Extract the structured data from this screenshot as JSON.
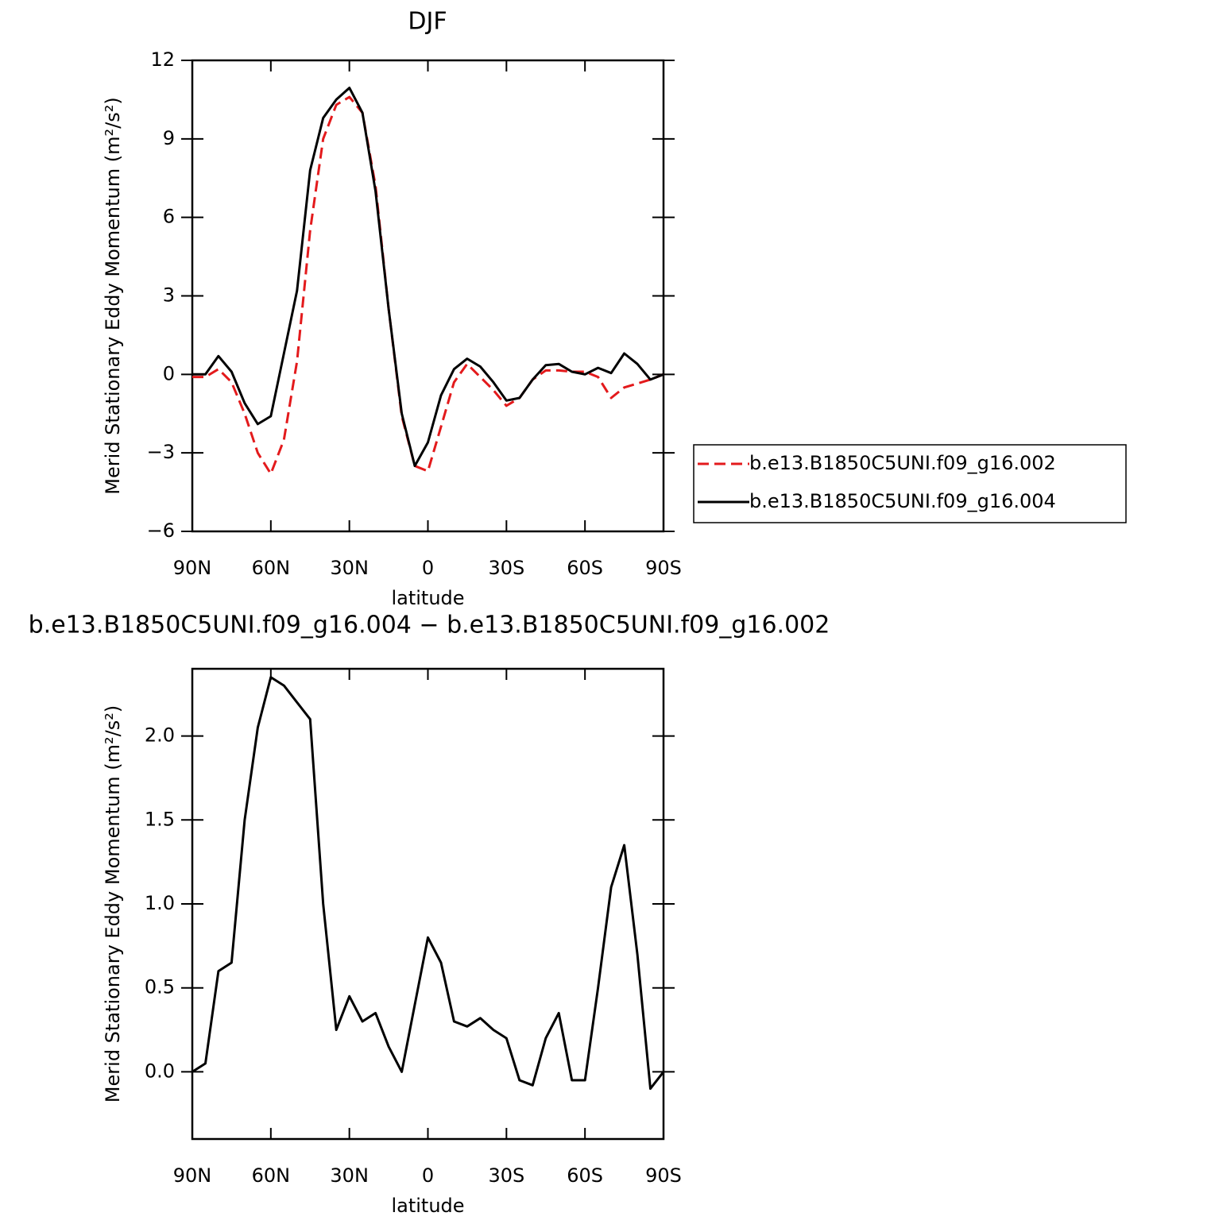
{
  "chart_data": [
    {
      "type": "line",
      "title": "DJF",
      "xlabel": "latitude",
      "ylabel": "Merid Stationary Eddy Momentum (m²/s²)",
      "x": [
        90,
        85,
        80,
        75,
        70,
        65,
        60,
        55,
        50,
        45,
        40,
        35,
        30,
        25,
        20,
        15,
        10,
        5,
        0,
        -5,
        -10,
        -15,
        -20,
        -25,
        -30,
        -35,
        -40,
        -45,
        -50,
        -55,
        -60,
        -65,
        -70,
        -75,
        -80,
        -85,
        -90
      ],
      "xlim": [
        90,
        -90
      ],
      "xticks": [
        {
          "value": 90,
          "label": "90N"
        },
        {
          "value": 60,
          "label": "60N"
        },
        {
          "value": 30,
          "label": "30N"
        },
        0,
        {
          "value": -30,
          "label": "30S"
        },
        {
          "value": -60,
          "label": "60S"
        },
        {
          "value": -90,
          "label": "90S"
        }
      ],
      "ylim": [
        -6,
        12
      ],
      "yticks": [
        {
          "value": -6,
          "label": "−6"
        },
        {
          "value": -3,
          "label": "−3"
        },
        0,
        3,
        6,
        9,
        12
      ],
      "legend": "right",
      "series": [
        {
          "name": "b.e13.B1850C5UNI.f09_g16.002",
          "color": "#e31a1c",
          "dash": true,
          "values": [
            -0.1,
            -0.1,
            0.2,
            -0.3,
            -1.5,
            -3.0,
            -3.8,
            -2.5,
            0.5,
            5.5,
            9.0,
            10.3,
            10.6,
            10.0,
            7.2,
            2.5,
            -1.6,
            -3.5,
            -3.7,
            -2.0,
            -0.3,
            0.4,
            -0.1,
            -0.6,
            -1.2,
            -0.9,
            -0.2,
            0.15,
            0.15,
            0.1,
            0.1,
            -0.1,
            -0.9,
            -0.5,
            -0.35,
            -0.2,
            0.0
          ]
        },
        {
          "name": "b.e13.B1850C5UNI.f09_g16.004",
          "color": "#000000",
          "dash": false,
          "values": [
            0.0,
            0.0,
            0.7,
            0.1,
            -1.1,
            -1.9,
            -1.6,
            0.8,
            3.2,
            7.8,
            9.8,
            10.5,
            10.95,
            10.0,
            7.0,
            2.5,
            -1.5,
            -3.5,
            -2.6,
            -0.8,
            0.2,
            0.6,
            0.3,
            -0.3,
            -1.0,
            -0.9,
            -0.2,
            0.35,
            0.4,
            0.1,
            0.0,
            0.25,
            0.05,
            0.8,
            0.4,
            -0.2,
            0.0
          ]
        }
      ]
    },
    {
      "type": "line",
      "title": "b.e13.B1850C5UNI.f09_g16.004 − b.e13.B1850C5UNI.f09_g16.002",
      "xlabel": "latitude",
      "ylabel": "Merid Stationary Eddy Momentum (m²/s²)",
      "x": [
        90,
        85,
        80,
        75,
        70,
        65,
        60,
        55,
        50,
        45,
        40,
        35,
        30,
        25,
        20,
        15,
        10,
        5,
        0,
        -5,
        -10,
        -15,
        -20,
        -25,
        -30,
        -35,
        -40,
        -45,
        -50,
        -55,
        -60,
        -65,
        -70,
        -75,
        -80,
        -85,
        -90
      ],
      "xlim": [
        90,
        -90
      ],
      "xticks": [
        {
          "value": 90,
          "label": "90N"
        },
        {
          "value": 60,
          "label": "60N"
        },
        {
          "value": 30,
          "label": "30N"
        },
        0,
        {
          "value": -30,
          "label": "30S"
        },
        {
          "value": -60,
          "label": "60S"
        },
        {
          "value": -90,
          "label": "90S"
        }
      ],
      "ylim": [
        -0.4,
        2.4
      ],
      "yticks": [
        {
          "value": 0,
          "label": "0.0"
        },
        0.5,
        {
          "value": 1,
          "label": "1.0"
        },
        1.5,
        {
          "value": 2,
          "label": "2.0"
        }
      ],
      "color": "#000000",
      "values": [
        0.0,
        0.05,
        0.6,
        0.65,
        1.5,
        2.05,
        2.35,
        2.3,
        2.2,
        2.1,
        1.0,
        0.25,
        0.45,
        0.3,
        0.35,
        0.15,
        0.0,
        0.4,
        0.8,
        0.65,
        0.3,
        0.27,
        0.32,
        0.25,
        0.2,
        -0.05,
        -0.08,
        0.2,
        0.35,
        -0.05,
        -0.05,
        0.5,
        1.1,
        1.35,
        0.7,
        -0.1,
        0.0
      ]
    }
  ]
}
